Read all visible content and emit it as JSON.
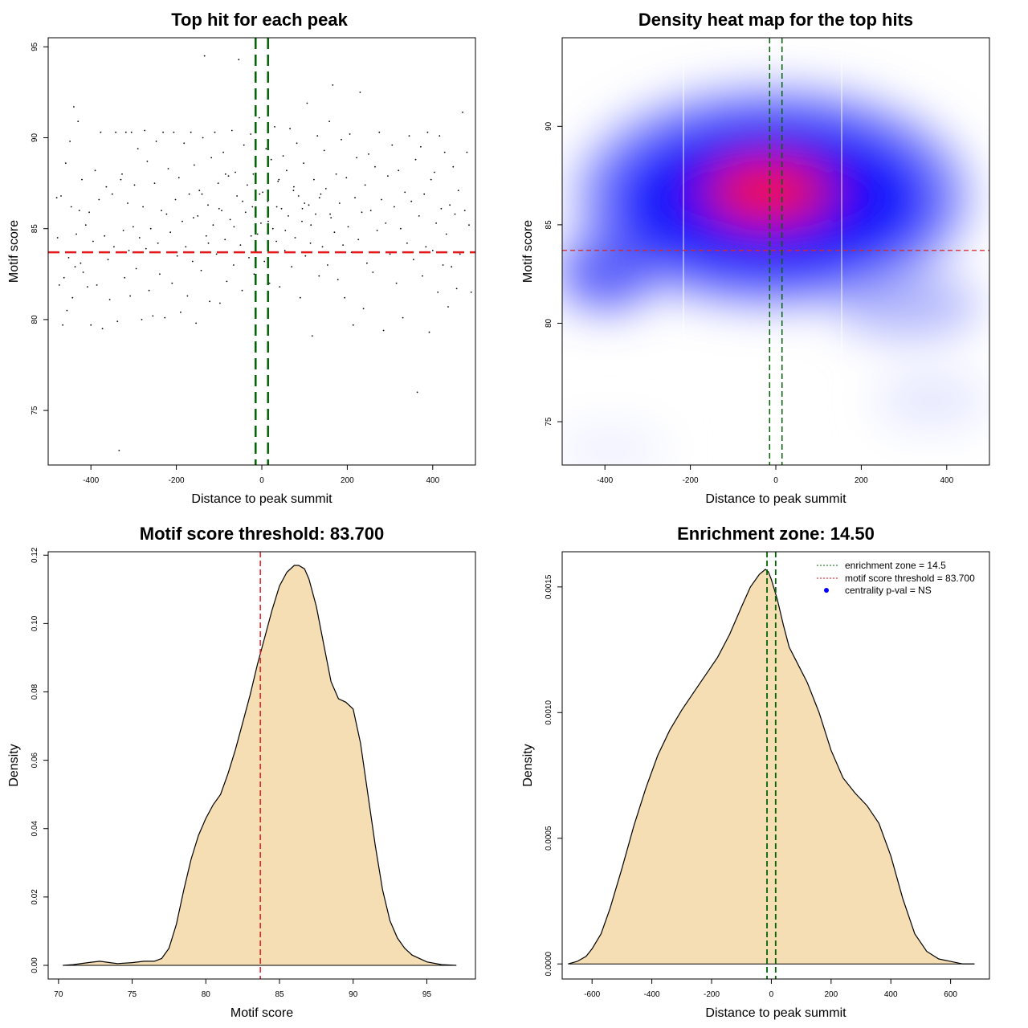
{
  "chart_data": [
    {
      "type": "scatter",
      "title": "Top hit for each peak",
      "xlabel": "Distance to peak summit",
      "ylabel": "Motif score",
      "xlim": [
        -500,
        500
      ],
      "ylim": [
        72,
        95.5
      ],
      "x_ticks": [
        -400,
        -200,
        0,
        200,
        400
      ],
      "y_ticks": [
        75,
        80,
        85,
        90,
        95
      ],
      "points": [
        [
          -480,
          86.7
        ],
        [
          -478,
          84.5
        ],
        [
          -474,
          81.9
        ],
        [
          -470,
          86.8
        ],
        [
          -466,
          79.7
        ],
        [
          -463,
          82.3
        ],
        [
          -459,
          88.6
        ],
        [
          -456,
          80.5
        ],
        [
          -452,
          83.4
        ],
        [
          -449,
          89.8
        ],
        [
          -446,
          86.2
        ],
        [
          -443,
          81.2
        ],
        [
          -440,
          91.7
        ],
        [
          -437,
          82.9
        ],
        [
          -434,
          84.7
        ],
        [
          -430,
          90.9
        ],
        [
          -427,
          86.0
        ],
        [
          -424,
          83.1
        ],
        [
          -421,
          87.7
        ],
        [
          -418,
          82.6
        ],
        [
          -412,
          85.2
        ],
        [
          -408,
          81.8
        ],
        [
          -404,
          85.9
        ],
        [
          -400,
          79.7
        ],
        [
          -395,
          84.3
        ],
        [
          -390,
          88.2
        ],
        [
          -386,
          81.9
        ],
        [
          -381,
          86.6
        ],
        [
          -377,
          90.3
        ],
        [
          -373,
          79.5
        ],
        [
          -368,
          84.6
        ],
        [
          -364,
          87.3
        ],
        [
          -360,
          83.3
        ],
        [
          -356,
          81.1
        ],
        [
          -350,
          86.9
        ],
        [
          -346,
          84.0
        ],
        [
          -342,
          90.3
        ],
        [
          -338,
          79.9
        ],
        [
          -334,
          72.8
        ],
        [
          -330,
          87.7
        ],
        [
          -327,
          88.0
        ],
        [
          -324,
          84.9
        ],
        [
          -321,
          82.3
        ],
        [
          -318,
          90.3
        ],
        [
          -314,
          86.4
        ],
        [
          -311,
          83.8
        ],
        [
          -308,
          81.3
        ],
        [
          -305,
          90.3
        ],
        [
          -301,
          85.1
        ],
        [
          -298,
          87.4
        ],
        [
          -294,
          82.8
        ],
        [
          -290,
          89.4
        ],
        [
          -286,
          84.5
        ],
        [
          -281,
          80.0
        ],
        [
          -278,
          86.2
        ],
        [
          -274,
          90.4
        ],
        [
          -271,
          83.9
        ],
        [
          -268,
          88.7
        ],
        [
          -264,
          81.6
        ],
        [
          -260,
          85.0
        ],
        [
          -255,
          80.2
        ],
        [
          -251,
          87.5
        ],
        [
          -247,
          89.8
        ],
        [
          -243,
          84.2
        ],
        [
          -239,
          82.5
        ],
        [
          -235,
          86.0
        ],
        [
          -231,
          90.3
        ],
        [
          -227,
          80.1
        ],
        [
          -223,
          85.8
        ],
        [
          -219,
          88.3
        ],
        [
          -214,
          84.8
        ],
        [
          -210,
          82.0
        ],
        [
          -206,
          90.3
        ],
        [
          -202,
          86.6
        ],
        [
          -198,
          83.5
        ],
        [
          -194,
          87.8
        ],
        [
          -190,
          80.4
        ],
        [
          -186,
          85.4
        ],
        [
          -182,
          89.7
        ],
        [
          -178,
          84.0
        ],
        [
          -174,
          81.3
        ],
        [
          -170,
          86.9
        ],
        [
          -166,
          90.3
        ],
        [
          -162,
          83.2
        ],
        [
          -158,
          88.5
        ],
        [
          -154,
          79.8
        ],
        [
          -150,
          85.7
        ],
        [
          -146,
          87.1
        ],
        [
          -142,
          82.7
        ],
        [
          -138,
          90.0
        ],
        [
          -134,
          94.5
        ],
        [
          -130,
          84.6
        ],
        [
          -126,
          86.3
        ],
        [
          -122,
          81.0
        ],
        [
          -118,
          88.9
        ],
        [
          -114,
          85.2
        ],
        [
          -110,
          90.3
        ],
        [
          -106,
          83.6
        ],
        [
          -102,
          87.5
        ],
        [
          -98,
          80.9
        ],
        [
          -94,
          86.0
        ],
        [
          -90,
          89.2
        ],
        [
          -86,
          84.4
        ],
        [
          -82,
          82.1
        ],
        [
          -78,
          87.9
        ],
        [
          -74,
          85.5
        ],
        [
          -70,
          90.4
        ],
        [
          -66,
          83.0
        ],
        [
          -62,
          88.1
        ],
        [
          -58,
          86.8
        ],
        [
          -54,
          94.3
        ],
        [
          -50,
          84.1
        ],
        [
          -46,
          81.6
        ],
        [
          -42,
          89.6
        ],
        [
          -38,
          85.9
        ],
        [
          -34,
          87.4
        ],
        [
          -30,
          83.4
        ],
        [
          -26,
          90.2
        ],
        [
          -22,
          86.2
        ],
        [
          -18,
          82.5
        ],
        [
          -14,
          88.4
        ],
        [
          -10,
          84.7
        ],
        [
          -6,
          91.1
        ],
        [
          -2,
          85.3
        ],
        [
          2,
          87.0
        ],
        [
          6,
          83.2
        ],
        [
          10,
          89.4
        ],
        [
          14,
          86.5
        ],
        [
          18,
          82.0
        ],
        [
          22,
          88.8
        ],
        [
          26,
          85.0
        ],
        [
          30,
          90.6
        ],
        [
          34,
          84.3
        ],
        [
          38,
          87.6
        ],
        [
          42,
          81.8
        ],
        [
          46,
          86.1
        ],
        [
          50,
          89.0
        ],
        [
          54,
          83.8
        ],
        [
          58,
          88.2
        ],
        [
          62,
          85.7
        ],
        [
          66,
          90.5
        ],
        [
          70,
          82.9
        ],
        [
          74,
          87.1
        ],
        [
          78,
          84.5
        ],
        [
          82,
          89.7
        ],
        [
          86,
          86.8
        ],
        [
          90,
          81.2
        ],
        [
          94,
          85.4
        ],
        [
          98,
          88.6
        ],
        [
          102,
          83.5
        ],
        [
          106,
          91.9
        ],
        [
          110,
          86.3
        ],
        [
          114,
          84.2
        ],
        [
          118,
          79.1
        ],
        [
          122,
          87.7
        ],
        [
          126,
          85.8
        ],
        [
          130,
          90.1
        ],
        [
          134,
          82.4
        ],
        [
          138,
          86.9
        ],
        [
          142,
          84.0
        ],
        [
          146,
          89.3
        ],
        [
          150,
          87.2
        ],
        [
          154,
          83.0
        ],
        [
          158,
          90.9
        ],
        [
          162,
          85.6
        ],
        [
          166,
          92.9
        ],
        [
          170,
          84.8
        ],
        [
          174,
          88.0
        ],
        [
          178,
          82.2
        ],
        [
          182,
          86.4
        ],
        [
          186,
          89.9
        ],
        [
          190,
          84.1
        ],
        [
          194,
          81.2
        ],
        [
          198,
          87.8
        ],
        [
          202,
          85.1
        ],
        [
          206,
          90.2
        ],
        [
          210,
          83.7
        ],
        [
          214,
          79.7
        ],
        [
          218,
          86.7
        ],
        [
          222,
          88.9
        ],
        [
          226,
          84.4
        ],
        [
          230,
          92.5
        ],
        [
          234,
          85.9
        ],
        [
          238,
          80.6
        ],
        [
          242,
          87.4
        ],
        [
          246,
          83.1
        ],
        [
          250,
          89.1
        ],
        [
          255,
          86.0
        ],
        [
          260,
          82.6
        ],
        [
          265,
          88.4
        ],
        [
          270,
          84.9
        ],
        [
          275,
          90.3
        ],
        [
          280,
          86.6
        ],
        [
          285,
          79.4
        ],
        [
          290,
          85.3
        ],
        [
          295,
          87.9
        ],
        [
          300,
          83.6
        ],
        [
          305,
          89.6
        ],
        [
          310,
          86.2
        ],
        [
          315,
          82.0
        ],
        [
          320,
          88.2
        ],
        [
          325,
          85.0
        ],
        [
          330,
          80.1
        ],
        [
          335,
          87.0
        ],
        [
          340,
          84.2
        ],
        [
          345,
          90.1
        ],
        [
          350,
          86.5
        ],
        [
          355,
          83.3
        ],
        [
          360,
          88.8
        ],
        [
          364,
          76.0
        ],
        [
          368,
          85.7
        ],
        [
          372,
          89.5
        ],
        [
          376,
          82.4
        ],
        [
          380,
          86.9
        ],
        [
          384,
          84.0
        ],
        [
          388,
          90.3
        ],
        [
          392,
          79.3
        ],
        [
          396,
          87.7
        ],
        [
          400,
          83.8
        ],
        [
          404,
          88.1
        ],
        [
          408,
          85.3
        ],
        [
          412,
          81.5
        ],
        [
          416,
          90.1
        ],
        [
          420,
          86.1
        ],
        [
          424,
          83.0
        ],
        [
          428,
          89.2
        ],
        [
          432,
          84.7
        ],
        [
          436,
          80.7
        ],
        [
          440,
          86.3
        ],
        [
          444,
          82.9
        ],
        [
          448,
          88.4
        ],
        [
          452,
          85.8
        ],
        [
          456,
          81.7
        ],
        [
          460,
          87.1
        ],
        [
          464,
          83.6
        ],
        [
          470,
          91.4
        ],
        [
          475,
          86.0
        ],
        [
          480,
          89.2
        ],
        [
          485,
          85.2
        ],
        [
          490,
          81.5
        ],
        [
          -140,
          86.9
        ],
        [
          -125,
          84.2
        ],
        [
          -85,
          88.0
        ],
        [
          -65,
          85.1
        ],
        [
          -45,
          86.5
        ],
        [
          -25,
          84.6
        ],
        [
          -5,
          86.9
        ],
        [
          15,
          85.4
        ],
        [
          35,
          86.2
        ],
        [
          55,
          84.9
        ],
        [
          75,
          87.3
        ],
        [
          95,
          86.1
        ],
        [
          115,
          85.2
        ],
        [
          135,
          86.7
        ],
        [
          -160,
          85.6
        ],
        [
          -100,
          86.1
        ],
        [
          -20,
          88.0
        ],
        [
          40,
          87.7
        ],
        [
          100,
          86.4
        ],
        [
          160,
          85.8
        ]
      ]
    },
    {
      "type": "heatmap",
      "title": "Density heat map for the top hits",
      "xlabel": "Distance to peak summit",
      "ylabel": "Motif score",
      "xlim": [
        -500,
        500
      ],
      "ylim": [
        72.8,
        94.5
      ],
      "x_ticks": [
        -400,
        -200,
        0,
        200,
        400
      ],
      "y_ticks": [
        75,
        80,
        85,
        90
      ],
      "colors": [
        "#ffffff",
        "#0000ff",
        "#ff0000"
      ]
    },
    {
      "type": "area",
      "title": "Motif score threshold: 83.700",
      "xlabel": "Motif score",
      "ylabel": "Density",
      "xlim": [
        69.3,
        98.3
      ],
      "ylim": [
        -0.004,
        0.121
      ],
      "x_ticks": [
        70,
        75,
        80,
        85,
        90,
        95
      ],
      "y_ticks": [
        0.0,
        0.02,
        0.04,
        0.06,
        0.08,
        0.1,
        0.12
      ],
      "y_tick_labels": [
        "0.00",
        "0.02",
        "0.04",
        "0.06",
        "0.08",
        "0.10",
        "0.12"
      ],
      "x": [
        70.3,
        71,
        72,
        72.8,
        73.5,
        74,
        75,
        75.8,
        76.5,
        77,
        77.5,
        78,
        78.5,
        79,
        79.5,
        80,
        80.5,
        81,
        81.5,
        82,
        82.5,
        83,
        83.5,
        84,
        84.5,
        85,
        85.5,
        86,
        86.3,
        86.7,
        87,
        87.5,
        88,
        88.5,
        89,
        89.5,
        90,
        90.5,
        91,
        91.5,
        92,
        92.5,
        93,
        93.5,
        94,
        95,
        96,
        97
      ],
      "y": [
        0.0,
        0.0002,
        0.0008,
        0.0012,
        0.0008,
        0.0005,
        0.0008,
        0.0012,
        0.0012,
        0.002,
        0.005,
        0.012,
        0.022,
        0.031,
        0.038,
        0.043,
        0.047,
        0.05,
        0.056,
        0.063,
        0.071,
        0.079,
        0.088,
        0.096,
        0.104,
        0.111,
        0.115,
        0.117,
        0.117,
        0.116,
        0.113,
        0.105,
        0.094,
        0.083,
        0.078,
        0.077,
        0.075,
        0.065,
        0.05,
        0.035,
        0.022,
        0.013,
        0.008,
        0.005,
        0.003,
        0.001,
        0.0002,
        0.0
      ],
      "threshold": 83.7,
      "fill": "#f5deb3"
    },
    {
      "type": "area",
      "title": "Enrichment zone: 14.50",
      "xlabel": "Distance to peak summit",
      "ylabel": "Density",
      "xlim": [
        -700,
        730
      ],
      "ylim": [
        -6e-05,
        0.00164
      ],
      "x_ticks": [
        -600,
        -400,
        -200,
        0,
        200,
        400,
        600
      ],
      "y_ticks": [
        0.0,
        0.0005,
        0.001,
        0.0015
      ],
      "y_tick_labels": [
        "0.0000",
        "0.0005",
        "0.0010",
        "0.0015"
      ],
      "x": [
        -680,
        -650,
        -620,
        -600,
        -570,
        -540,
        -500,
        -460,
        -420,
        -380,
        -340,
        -300,
        -260,
        -220,
        -180,
        -140,
        -100,
        -70,
        -40,
        -20,
        -10,
        0,
        20,
        40,
        60,
        90,
        120,
        160,
        200,
        240,
        280,
        320,
        360,
        400,
        440,
        480,
        520,
        560,
        600,
        640,
        680
      ],
      "y": [
        0.0,
        1e-05,
        3e-05,
        6e-05,
        0.00012,
        0.00022,
        0.00038,
        0.00055,
        0.0007,
        0.00083,
        0.00093,
        0.00101,
        0.00108,
        0.00115,
        0.00122,
        0.00131,
        0.00142,
        0.0015,
        0.00155,
        0.00157,
        0.00156,
        0.00153,
        0.00145,
        0.00135,
        0.00126,
        0.00119,
        0.00112,
        0.001,
        0.00085,
        0.00074,
        0.00068,
        0.00063,
        0.00056,
        0.00043,
        0.00026,
        0.00012,
        5e-05,
        2e-05,
        1e-05,
        0.0,
        0.0
      ],
      "enrichment_zone": 14.5,
      "fill": "#f5deb3",
      "legend": [
        {
          "label": "enrichment zone = 14.5",
          "color": "#006400"
        },
        {
          "label": "motif score threshold = 83.700",
          "color": "#ff0000"
        },
        {
          "label": "centrality p-val = NS",
          "color": "#0000ff"
        }
      ],
      "legend_position": "top-right"
    }
  ]
}
